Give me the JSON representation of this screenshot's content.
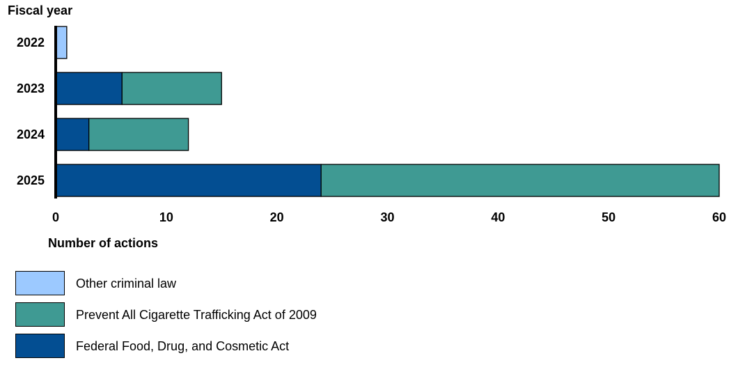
{
  "chart_data": {
    "type": "bar",
    "orientation": "horizontal",
    "stacked": true,
    "title": "",
    "ylabel": "Fiscal year",
    "xlabel": "Number of actions",
    "categories": [
      "2022",
      "2023",
      "2024",
      "2025"
    ],
    "xlim": [
      0,
      60
    ],
    "xticks": [
      0,
      10,
      20,
      30,
      40,
      50,
      60
    ],
    "grid": false,
    "legend_position": "bottom-left",
    "series": [
      {
        "name": "Federal Food, Drug, and Cosmetic Act",
        "color": "#034e92",
        "values": [
          0,
          6,
          3,
          24
        ]
      },
      {
        "name": "Prevent All Cigarette Trafficking Act of 2009",
        "color": "#3f9a93",
        "values": [
          0,
          9,
          9,
          36
        ]
      },
      {
        "name": "Other criminal law",
        "color": "#9cc9ff",
        "values": [
          1,
          0,
          0,
          0
        ]
      }
    ],
    "legend_order": [
      "Other criminal law",
      "Prevent All Cigarette Trafficking Act of 2009",
      "Federal Food, Drug, and Cosmetic Act"
    ]
  }
}
